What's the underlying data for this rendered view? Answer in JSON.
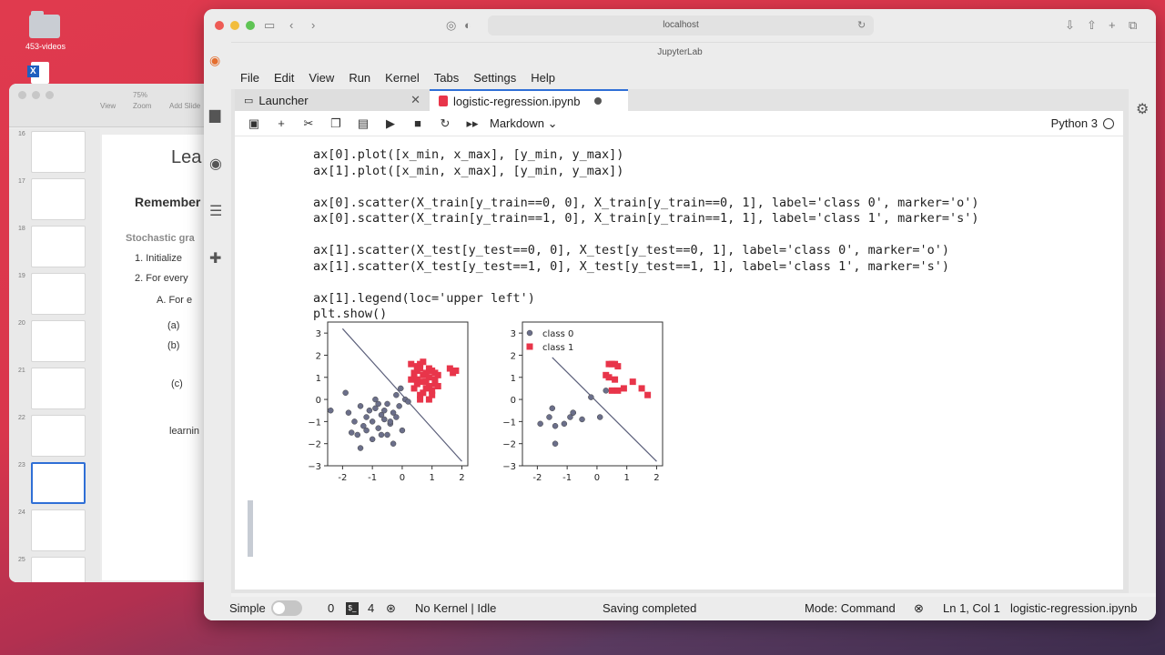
{
  "desktop": {
    "folder_label": "453-videos"
  },
  "presentation": {
    "toolbar": [
      "View",
      "Zoom",
      "Add Slide"
    ],
    "zoom": "75%",
    "slide_numbers": [
      "16",
      "17",
      "18",
      "19",
      "20",
      "21",
      "22",
      "23",
      "24",
      "25"
    ],
    "slide": {
      "title": "Lea",
      "heading": "Remember",
      "subheading": "Stochastic gra",
      "step1": "1.   Initialize",
      "step2": "2.   For every",
      "stepA": "A.   For e",
      "a": "(a)",
      "b": "(b)",
      "c": "(c)",
      "learning": "learnin"
    }
  },
  "browser": {
    "url": "localhost",
    "tab_title": "JupyterLab"
  },
  "jupyter": {
    "menu": [
      "File",
      "Edit",
      "View",
      "Run",
      "Kernel",
      "Tabs",
      "Settings",
      "Help"
    ],
    "tabs": [
      {
        "label": "Launcher"
      },
      {
        "label": "logistic-regression.ipynb"
      }
    ],
    "cell_type": "Markdown",
    "kernel_name": "Python 3",
    "code_lines": [
      "ax[0].plot([x_min, x_max], [y_min, y_max])",
      "ax[1].plot([x_min, x_max], [y_min, y_max])",
      "",
      "ax[0].scatter(X_train[y_train==0, 0], X_train[y_train==0, 1], label='class 0', marker='o')",
      "ax[0].scatter(X_train[y_train==1, 0], X_train[y_train==1, 1], label='class 1', marker='s')",
      "",
      "ax[1].scatter(X_test[y_test==0, 0], X_test[y_test==0, 1], label='class 0', marker='o')",
      "ax[1].scatter(X_test[y_test==1, 0], X_test[y_test==1, 1], label='class 1', marker='s')",
      "",
      "ax[1].legend(loc='upper left')",
      "plt.show()"
    ],
    "status": {
      "mode_label": "Simple",
      "zero": "0",
      "four": "4",
      "kernel_status": "No Kernel | Idle",
      "saving": "Saving completed",
      "mode": "Mode: Command",
      "position": "Ln 1, Col 1",
      "file": "logistic-regression.ipynb"
    }
  },
  "colors": {
    "class0": "#6b6f8a",
    "class1": "#e8354a",
    "line": "#5b5f7a"
  },
  "chart_data": [
    {
      "type": "scatter",
      "xlim": [
        -2.5,
        2.2
      ],
      "ylim": [
        -3,
        3.5
      ],
      "xticks": [
        "-2",
        "-1",
        "0",
        "1",
        "2"
      ],
      "yticks": [
        "3",
        "2",
        "1",
        "0",
        "−1",
        "−2",
        "−3"
      ],
      "line": [
        [
          -2,
          3.2
        ],
        [
          2,
          -2.8
        ]
      ],
      "series": [
        {
          "marker": "o",
          "x": [
            -2.4,
            -1.9,
            -1.8,
            -1.6,
            -1.4,
            -1.3,
            -1.2,
            -1.1,
            -1.0,
            -0.9,
            -0.8,
            -0.7,
            -0.6,
            -0.5,
            -0.4,
            -0.3,
            -0.2,
            -0.1,
            0.0,
            0.1,
            -1.5,
            -1.2,
            -0.9,
            -0.6,
            -0.3,
            -1.4,
            -1.0,
            -0.7,
            -0.4,
            -0.2,
            -0.8,
            -0.5,
            -1.7,
            0.2,
            -0.05
          ],
          "y": [
            -0.5,
            0.3,
            -0.6,
            -1.0,
            -0.3,
            -1.2,
            -0.8,
            -0.5,
            -1.0,
            -0.4,
            -1.3,
            -0.7,
            -0.9,
            -0.2,
            -1.1,
            -0.6,
            0.2,
            -0.3,
            -1.4,
            0.0,
            -1.6,
            -1.4,
            0.0,
            -0.5,
            -2.0,
            -2.2,
            -1.8,
            -1.6,
            -1.0,
            -0.8,
            -0.2,
            -1.6,
            -1.5,
            -0.1,
            0.5
          ]
        },
        {
          "marker": "s",
          "x": [
            0.3,
            0.4,
            0.5,
            0.6,
            0.7,
            0.8,
            0.9,
            1.0,
            1.1,
            1.2,
            0.4,
            0.5,
            0.6,
            0.7,
            0.8,
            0.9,
            1.0,
            1.1,
            0.3,
            0.5,
            0.7,
            0.9,
            1.1,
            0.6,
            0.8,
            1.0,
            0.4,
            1.7,
            1.8,
            1.6,
            0.5,
            0.7,
            0.9,
            1.2,
            0.6
          ],
          "y": [
            1.6,
            1.0,
            1.3,
            1.6,
            1.1,
            0.8,
            1.4,
            1.3,
            0.9,
            1.1,
            0.5,
            0.7,
            0.2,
            0.8,
            1.2,
            0.6,
            0.4,
            0.7,
            0.9,
            1.5,
            0.3,
            1.0,
            1.2,
            0.0,
            0.5,
            0.2,
            1.2,
            1.2,
            1.3,
            1.4,
            0.9,
            1.7,
            0.0,
            0.6,
            1.4
          ]
        }
      ]
    },
    {
      "type": "scatter",
      "xlim": [
        -2.5,
        2.2
      ],
      "ylim": [
        -3,
        3.5
      ],
      "xticks": [
        "-2",
        "-1",
        "0",
        "1",
        "2"
      ],
      "yticks": [
        "3",
        "2",
        "1",
        "0",
        "−1",
        "−2",
        "−3"
      ],
      "legend": [
        "class 0",
        "class 1"
      ],
      "line": [
        [
          -1.5,
          1.9
        ],
        [
          2,
          -2.8
        ]
      ],
      "series": [
        {
          "marker": "o",
          "x": [
            -1.9,
            -1.6,
            -1.5,
            -1.4,
            -1.1,
            -0.9,
            -0.8,
            -0.5,
            -0.2,
            0.1,
            0.3,
            -1.4,
            -0.8
          ],
          "y": [
            -1.1,
            -0.8,
            -0.4,
            -2.0,
            -1.1,
            -0.8,
            -0.6,
            -0.9,
            0.1,
            -0.8,
            0.4,
            -1.2,
            -0.6
          ]
        },
        {
          "marker": "s",
          "x": [
            0.4,
            0.5,
            0.6,
            0.7,
            0.3,
            0.5,
            0.7,
            0.9,
            1.2,
            1.5,
            1.7,
            0.4,
            0.6
          ],
          "y": [
            1.6,
            1.6,
            1.6,
            1.5,
            1.1,
            0.4,
            0.4,
            0.5,
            0.8,
            0.5,
            0.2,
            1.0,
            0.9
          ]
        }
      ]
    }
  ]
}
